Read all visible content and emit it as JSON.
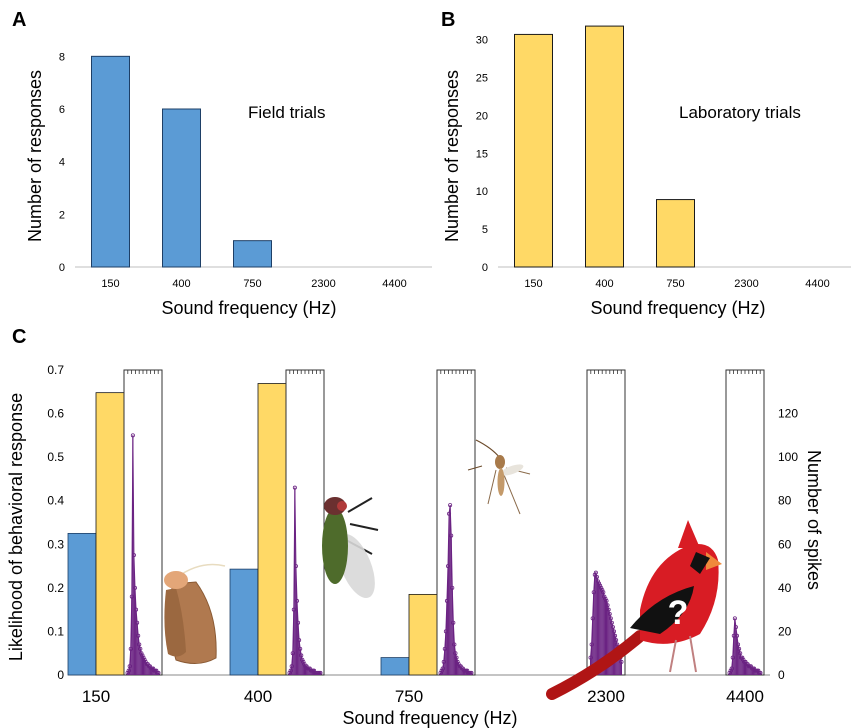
{
  "colors": {
    "field": "#5b9bd5",
    "field_stroke": "#1e3f66",
    "lab": "#ffd966",
    "lab_stroke": "#1a1a1a",
    "spikes": "#6b2383",
    "axis": "#bfbfbf",
    "text": "#1a1a1a"
  },
  "chart_data": [
    {
      "panel": "A",
      "type": "bar",
      "annotation": "Field trials",
      "categories": [
        "150",
        "400",
        "750",
        "2300",
        "4400"
      ],
      "values": [
        8,
        6,
        1,
        0,
        0
      ],
      "xlabel": "Sound frequency (Hz)",
      "ylabel": "Number of responses",
      "yticks": [
        "0",
        "2",
        "4",
        "6",
        "8"
      ],
      "ylim": [
        0,
        9
      ],
      "grid": false
    },
    {
      "panel": "B",
      "type": "bar",
      "annotation": "Laboratory trials",
      "categories": [
        "150",
        "400",
        "750",
        "2300",
        "4400"
      ],
      "values": [
        30.7,
        31.8,
        8.9,
        0,
        0
      ],
      "xlabel": "Sound frequency (Hz)",
      "ylabel": "Number of responses",
      "yticks": [
        "0",
        "5",
        "10",
        "15",
        "20",
        "25",
        "30"
      ],
      "ylim": [
        0,
        33
      ],
      "grid": false
    },
    {
      "panel": "C",
      "type": "bar",
      "categories": [
        "150",
        "400",
        "750",
        "2300",
        "4400"
      ],
      "xlabel": "Sound frequency (Hz)",
      "ylabel": "Likelihood of behavioral response",
      "ylabel_right": "Number of spikes",
      "yticks_left": [
        "0",
        "0.1",
        "0.2",
        "0.3",
        "0.4",
        "0.5",
        "0.6",
        "0.7"
      ],
      "ylim_left": [
        0,
        0.7
      ],
      "yticks_right": [
        "0",
        "20",
        "40",
        "60",
        "80",
        "100",
        "120"
      ],
      "ylim_right": [
        0,
        140
      ],
      "series": [
        {
          "values": [
            0.325,
            0.243,
            0.04,
            0,
            0
          ]
        },
        {
          "values": [
            0.648,
            0.669,
            0.185,
            0,
            0
          ]
        }
      ],
      "spike_histograms": [
        {
          "category": "150",
          "counts": [
            1,
            2,
            4,
            12,
            36,
            110,
            55,
            40,
            30,
            24,
            18,
            14,
            12,
            10,
            9,
            8,
            7,
            6,
            5,
            5,
            4,
            4,
            3,
            3,
            3,
            2,
            2,
            2,
            1,
            1
          ]
        },
        {
          "category": "400",
          "counts": [
            1,
            2,
            4,
            10,
            30,
            86,
            50,
            34,
            24,
            16,
            12,
            9,
            7,
            6,
            5,
            4,
            4,
            3,
            3,
            3,
            2,
            2,
            2,
            2,
            1,
            1,
            1,
            1,
            1,
            1
          ]
        },
        {
          "category": "750",
          "counts": [
            1,
            2,
            3,
            6,
            12,
            20,
            34,
            50,
            74,
            78,
            64,
            40,
            24,
            14,
            10,
            8,
            6,
            5,
            4,
            4,
            3,
            3,
            2,
            2,
            2,
            2,
            1,
            1,
            1,
            1
          ]
        },
        {
          "category": "2300",
          "counts": [
            8,
            14,
            26,
            38,
            46,
            47,
            45,
            43,
            42,
            41,
            40,
            39,
            38,
            36,
            35,
            34,
            32,
            30,
            28,
            26,
            24,
            22,
            20,
            18,
            16,
            14,
            12,
            10,
            8,
            6
          ]
        },
        {
          "category": "4400",
          "counts": [
            1,
            2,
            3,
            8,
            18,
            26,
            22,
            18,
            14,
            12,
            10,
            8,
            8,
            7,
            6,
            6,
            5,
            5,
            4,
            4,
            4,
            3,
            3,
            3,
            2,
            2,
            2,
            2,
            1,
            1
          ]
        }
      ]
    }
  ],
  "panel_labels": [
    "A",
    "B",
    "C"
  ],
  "icons": [
    "moth-icon",
    "fly-icon",
    "mosquito-icon",
    "cardinal-icon"
  ],
  "cardinal_mark": "?"
}
